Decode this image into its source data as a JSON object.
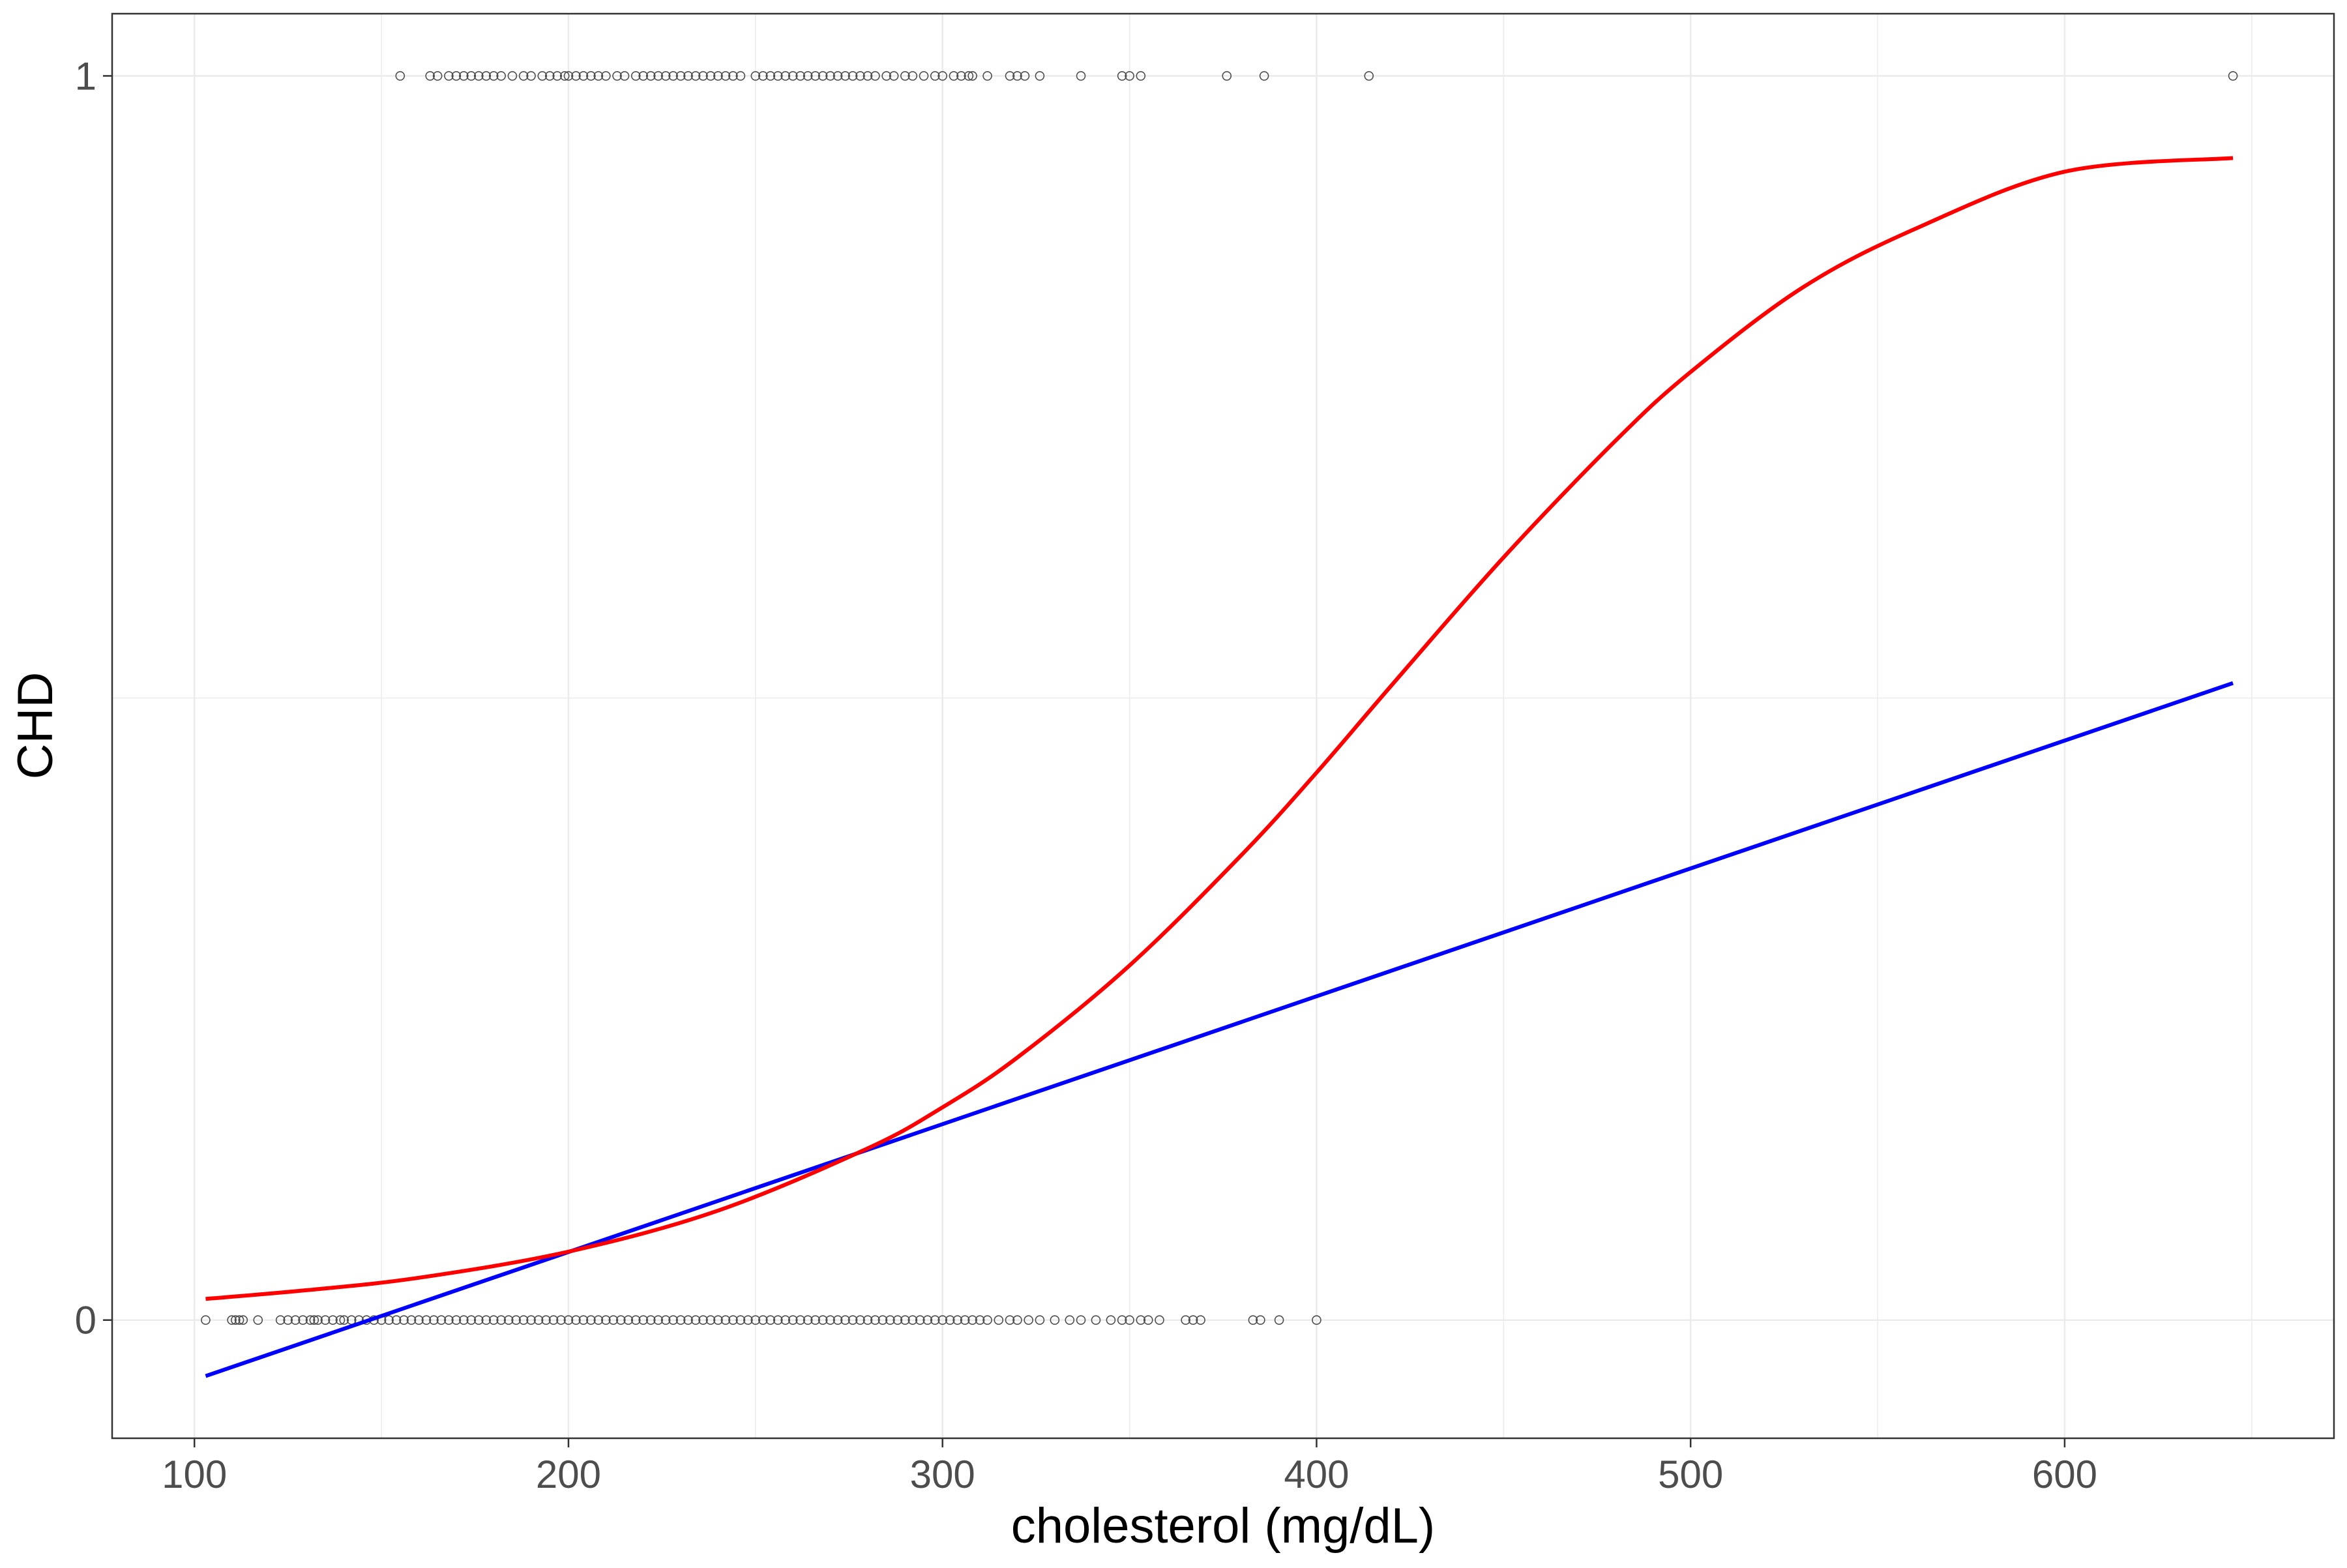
{
  "chart_data": {
    "type": "scatter",
    "title": "",
    "xlabel": "cholesterol (mg/dL)",
    "ylabel": "CHD",
    "xlim": [
      78,
      672
    ],
    "ylim": [
      -0.095,
      1.05
    ],
    "x_ticks": [
      100,
      200,
      300,
      400,
      500,
      600
    ],
    "x_tick_labels": [
      "100",
      "200",
      "300",
      "400",
      "500",
      "600"
    ],
    "y_ticks": [
      0,
      1
    ],
    "y_tick_labels": [
      "0",
      "1"
    ],
    "grid": true,
    "legend": "none",
    "series": [
      {
        "kind": "points",
        "y": 0,
        "x": [
          103,
          110,
          111,
          112,
          113,
          117,
          123,
          125,
          127,
          129,
          131,
          132,
          133,
          135,
          137,
          139,
          140,
          142,
          144,
          146,
          148,
          150,
          152,
          154,
          156,
          158,
          160,
          162,
          164,
          166,
          168,
          170,
          172,
          174,
          176,
          178,
          180,
          182,
          184,
          186,
          188,
          190,
          192,
          194,
          196,
          198,
          200,
          202,
          204,
          206,
          208,
          210,
          212,
          214,
          216,
          218,
          220,
          222,
          224,
          226,
          228,
          230,
          232,
          234,
          236,
          238,
          240,
          242,
          244,
          246,
          248,
          250,
          252,
          254,
          256,
          258,
          260,
          262,
          264,
          266,
          268,
          270,
          272,
          274,
          276,
          278,
          280,
          282,
          284,
          286,
          288,
          290,
          292,
          294,
          296,
          298,
          300,
          302,
          304,
          306,
          308,
          310,
          312,
          315,
          318,
          320,
          323,
          326,
          330,
          334,
          337,
          341,
          345,
          348,
          350,
          353,
          355,
          358,
          365,
          367,
          369,
          383,
          385,
          390,
          400
        ],
        "color": "#4d4d4d"
      },
      {
        "kind": "points",
        "y": 1,
        "x": [
          155,
          163,
          165,
          168,
          170,
          172,
          174,
          176,
          178,
          180,
          182,
          185,
          188,
          190,
          193,
          195,
          197,
          199,
          200,
          202,
          204,
          206,
          208,
          210,
          213,
          215,
          218,
          220,
          222,
          224,
          226,
          228,
          230,
          232,
          234,
          236,
          238,
          240,
          242,
          244,
          246,
          250,
          252,
          254,
          256,
          258,
          260,
          262,
          264,
          266,
          268,
          270,
          272,
          274,
          276,
          278,
          280,
          282,
          285,
          287,
          290,
          292,
          295,
          298,
          300,
          303,
          305,
          307,
          308,
          312,
          318,
          320,
          322,
          326,
          337,
          348,
          350,
          353,
          376,
          386,
          414,
          645
        ],
        "color": "#4d4d4d"
      },
      {
        "kind": "line",
        "model": "linear",
        "color": "#0000ff",
        "x": [
          103,
          645
        ],
        "y": [
          -0.045,
          0.512
        ]
      },
      {
        "kind": "line",
        "model": "logistic",
        "color": "#ff0000",
        "x": [
          103,
          130,
          160,
          200,
          240,
          280,
          300,
          320,
          350,
          380,
          400,
          420,
          450,
          480,
          500,
          530,
          560,
          600,
          645
        ],
        "y": [
          0.017,
          0.024,
          0.034,
          0.055,
          0.088,
          0.138,
          0.171,
          0.211,
          0.285,
          0.374,
          0.44,
          0.51,
          0.613,
          0.707,
          0.762,
          0.83,
          0.877,
          0.923,
          0.934
        ]
      }
    ]
  }
}
